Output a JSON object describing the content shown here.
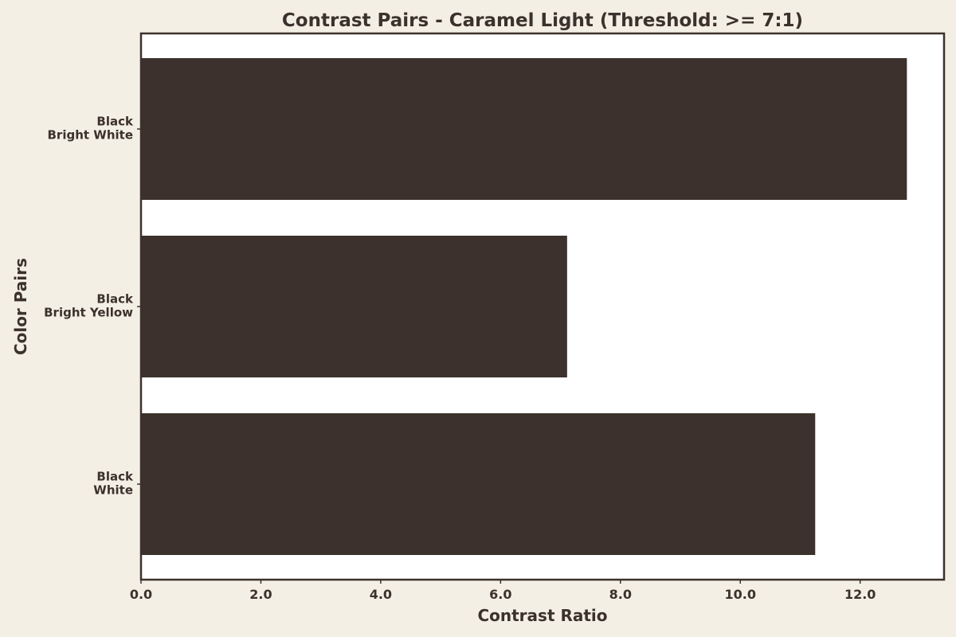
{
  "chart_data": {
    "type": "bar",
    "orientation": "horizontal",
    "title": "Contrast Pairs - Caramel Light (Threshold: >= 7:1)",
    "xlabel": "Contrast Ratio",
    "ylabel": "Color Pairs",
    "categories": [
      [
        "Black",
        "Bright White"
      ],
      [
        "Black",
        "Bright Yellow"
      ],
      [
        "Black",
        "White"
      ]
    ],
    "values": [
      12.78,
      7.11,
      11.25
    ],
    "xlim": [
      0,
      13.4
    ],
    "xticks": [
      "0.0",
      "2.0",
      "4.0",
      "6.0",
      "8.0",
      "10.0",
      "12.0"
    ],
    "grid": false,
    "legend": "none",
    "colors": {
      "bar": "#3c312c",
      "plot_background": "#ffffff",
      "figure_background": "#f3efe5",
      "text": "#3c312c",
      "frame": "#3c312c"
    }
  }
}
